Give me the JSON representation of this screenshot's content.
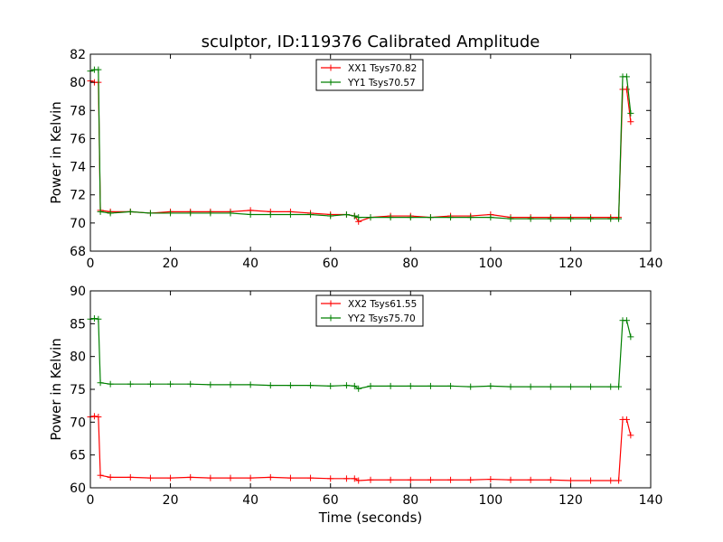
{
  "chart_data": [
    {
      "type": "line",
      "title": "sculptor, ID:119376 Calibrated Amplitude",
      "xlabel": "",
      "ylabel": "Power in Kelvin",
      "xlim": [
        0,
        140
      ],
      "ylim": [
        68,
        82
      ],
      "xticks": [
        "0",
        "20",
        "40",
        "60",
        "80",
        "100",
        "120",
        "140"
      ],
      "yticks": [
        "68",
        "70",
        "72",
        "74",
        "76",
        "78",
        "80",
        "82"
      ],
      "legend_position": "top-center",
      "grid": false,
      "series": [
        {
          "name": "XX1 Tsys70.82",
          "color": "#ff0000",
          "x": [
            0,
            1,
            2,
            2.5,
            5,
            10,
            15,
            20,
            25,
            30,
            35,
            40,
            45,
            50,
            55,
            60,
            64,
            66,
            67,
            70,
            75,
            80,
            85,
            90,
            95,
            100,
            105,
            110,
            115,
            120,
            125,
            130,
            132,
            133,
            134,
            135
          ],
          "y": [
            80.1,
            80.0,
            80.0,
            70.9,
            70.8,
            70.8,
            70.7,
            70.8,
            70.8,
            70.8,
            70.8,
            70.9,
            70.8,
            70.8,
            70.7,
            70.6,
            70.6,
            70.5,
            70.1,
            70.4,
            70.5,
            70.5,
            70.4,
            70.5,
            70.5,
            70.6,
            70.4,
            70.4,
            70.4,
            70.4,
            70.4,
            70.4,
            70.4,
            79.5,
            79.5,
            77.2
          ]
        },
        {
          "name": "YY1 Tsys70.57",
          "color": "#008000",
          "x": [
            0,
            1,
            2,
            2.5,
            5,
            10,
            15,
            20,
            25,
            30,
            35,
            40,
            45,
            50,
            55,
            60,
            64,
            66,
            67,
            70,
            75,
            80,
            85,
            90,
            95,
            100,
            105,
            110,
            115,
            120,
            125,
            130,
            132,
            133,
            134,
            135
          ],
          "y": [
            80.8,
            80.9,
            80.9,
            70.8,
            70.7,
            70.8,
            70.7,
            70.7,
            70.7,
            70.7,
            70.7,
            70.6,
            70.6,
            70.6,
            70.6,
            70.5,
            70.6,
            70.5,
            70.4,
            70.4,
            70.4,
            70.4,
            70.4,
            70.4,
            70.4,
            70.4,
            70.3,
            70.3,
            70.3,
            70.3,
            70.3,
            70.3,
            70.3,
            80.4,
            80.4,
            77.8
          ]
        }
      ]
    },
    {
      "type": "line",
      "title": "",
      "xlabel": "Time (seconds)",
      "ylabel": "Power in Kelvin",
      "xlim": [
        0,
        140
      ],
      "ylim": [
        60,
        90
      ],
      "xticks": [
        "0",
        "20",
        "40",
        "60",
        "80",
        "100",
        "120",
        "140"
      ],
      "yticks": [
        "60",
        "65",
        "70",
        "75",
        "80",
        "85",
        "90"
      ],
      "legend_position": "top-center",
      "grid": false,
      "series": [
        {
          "name": "XX2 Tsys61.55",
          "color": "#ff0000",
          "x": [
            0,
            1,
            2,
            2.5,
            5,
            10,
            15,
            20,
            25,
            30,
            35,
            40,
            45,
            50,
            55,
            60,
            64,
            66,
            67,
            70,
            75,
            80,
            85,
            90,
            95,
            100,
            105,
            110,
            115,
            120,
            125,
            130,
            132,
            133,
            134,
            135
          ],
          "y": [
            70.8,
            70.9,
            70.8,
            61.9,
            61.6,
            61.6,
            61.5,
            61.5,
            61.6,
            61.5,
            61.5,
            61.5,
            61.6,
            61.5,
            61.5,
            61.4,
            61.4,
            61.4,
            61.1,
            61.2,
            61.2,
            61.2,
            61.2,
            61.2,
            61.2,
            61.3,
            61.2,
            61.2,
            61.2,
            61.1,
            61.1,
            61.1,
            61.1,
            70.4,
            70.4,
            68.0
          ]
        },
        {
          "name": "YY2 Tsys75.70",
          "color": "#008000",
          "x": [
            0,
            1,
            2,
            2.5,
            5,
            10,
            15,
            20,
            25,
            30,
            35,
            40,
            45,
            50,
            55,
            60,
            64,
            66,
            67,
            70,
            75,
            80,
            85,
            90,
            95,
            100,
            105,
            110,
            115,
            120,
            125,
            130,
            132,
            133,
            134,
            135
          ],
          "y": [
            85.7,
            85.8,
            85.7,
            76.0,
            75.8,
            75.8,
            75.8,
            75.8,
            75.8,
            75.7,
            75.7,
            75.7,
            75.6,
            75.6,
            75.6,
            75.5,
            75.6,
            75.5,
            75.1,
            75.5,
            75.5,
            75.5,
            75.5,
            75.5,
            75.4,
            75.5,
            75.4,
            75.4,
            75.4,
            75.4,
            75.4,
            75.4,
            75.4,
            85.5,
            85.5,
            83.0
          ]
        }
      ]
    }
  ]
}
